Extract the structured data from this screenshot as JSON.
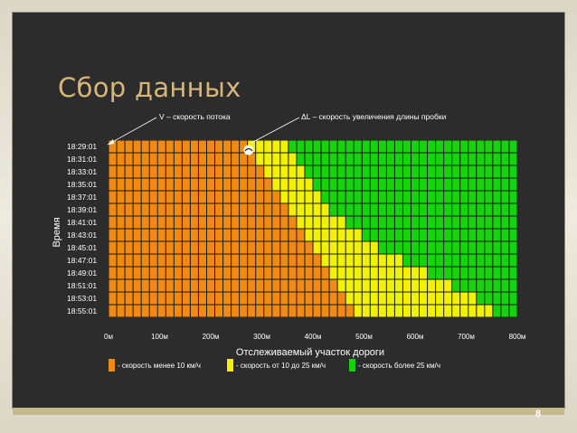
{
  "slide": {
    "title": "Сбор данных",
    "page_number": "8",
    "annotation_v": "V – скорость потока",
    "annotation_dl": "ΔL – скорость увеличения длины пробки"
  },
  "colors": {
    "orange": "#f08a12",
    "yellow": "#f2f200",
    "green": "#15d40c",
    "background": "#2c2c2c",
    "title": "#d7b679"
  },
  "chart_data": {
    "type": "heatmap",
    "title": "",
    "xlabel": "Отслеживаемый участок дороги",
    "ylabel": "Время",
    "x_ticks": [
      "0м",
      "100м",
      "200м",
      "300м",
      "400м",
      "500м",
      "600м",
      "700м",
      "800м"
    ],
    "y_ticks": [
      "18:29:01",
      "18:31:01",
      "18:33:01",
      "18:35:01",
      "18:37:01",
      "18:39:01",
      "18:41:01",
      "18:43:01",
      "18:45:01",
      "18:47:01",
      "18:49:01",
      "18:51:01",
      "18:53:01",
      "18:55:01"
    ],
    "xlim": [
      0,
      800
    ],
    "cell_width_m": 16,
    "legend": [
      {
        "label": "- скорость менее 10 км/ч",
        "color": "#f08a12"
      },
      {
        "label": "- скорость от 10 до 25 км/ч",
        "color": "#f2f200"
      },
      {
        "label": "- скорость более 25 км/ч",
        "color": "#15d40c"
      }
    ],
    "rows": [
      {
        "time": "18:29:01",
        "orange_end_m": 272,
        "yellow_end_m": 352
      },
      {
        "time": "18:31:01",
        "orange_end_m": 288,
        "yellow_end_m": 368
      },
      {
        "time": "18:33:01",
        "orange_end_m": 304,
        "yellow_end_m": 384
      },
      {
        "time": "18:35:01",
        "orange_end_m": 320,
        "yellow_end_m": 400
      },
      {
        "time": "18:37:01",
        "orange_end_m": 336,
        "yellow_end_m": 416
      },
      {
        "time": "18:39:01",
        "orange_end_m": 352,
        "yellow_end_m": 432
      },
      {
        "time": "18:41:01",
        "orange_end_m": 368,
        "yellow_end_m": 464
      },
      {
        "time": "18:43:01",
        "orange_end_m": 384,
        "yellow_end_m": 496
      },
      {
        "time": "18:45:01",
        "orange_end_m": 400,
        "yellow_end_m": 528
      },
      {
        "time": "18:47:01",
        "orange_end_m": 416,
        "yellow_end_m": 576
      },
      {
        "time": "18:49:01",
        "orange_end_m": 432,
        "yellow_end_m": 624
      },
      {
        "time": "18:51:01",
        "orange_end_m": 448,
        "yellow_end_m": 672
      },
      {
        "time": "18:53:01",
        "orange_end_m": 464,
        "yellow_end_m": 720
      },
      {
        "time": "18:55:01",
        "orange_end_m": 480,
        "yellow_end_m": 752
      }
    ]
  }
}
